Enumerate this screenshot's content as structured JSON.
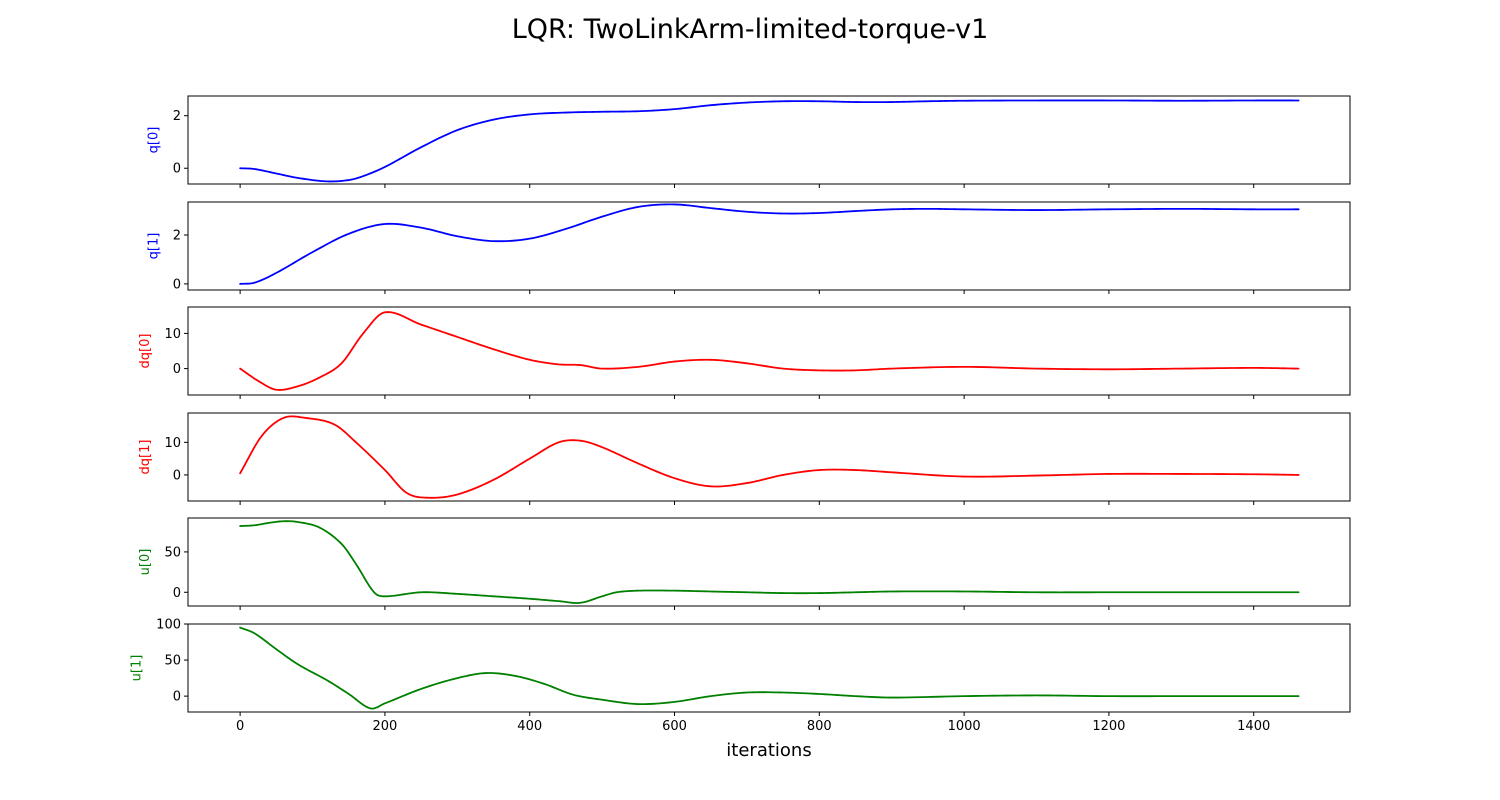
{
  "figure": {
    "title": "LQR: TwoLinkArm-limited-torque-v1",
    "xlabel": "iterations"
  },
  "chart_data": [
    {
      "type": "line",
      "ylabel": "q[0]",
      "color": "#0000ff",
      "xlim": [
        -72,
        1533
      ],
      "ylim": [
        -0.6,
        2.75
      ],
      "yticks": [
        0,
        2
      ],
      "xticks": [
        0,
        200,
        400,
        600,
        800,
        1000,
        1200,
        1400
      ],
      "show_xtick_labels": false,
      "x": [
        0,
        20,
        50,
        80,
        120,
        150,
        170,
        200,
        250,
        300,
        350,
        400,
        450,
        500,
        550,
        600,
        650,
        700,
        750,
        800,
        850,
        900,
        950,
        1000,
        1100,
        1200,
        1300,
        1400,
        1462
      ],
      "y": [
        0.0,
        -0.03,
        -0.2,
        -0.37,
        -0.5,
        -0.45,
        -0.3,
        0.05,
        0.8,
        1.45,
        1.85,
        2.05,
        2.12,
        2.15,
        2.17,
        2.25,
        2.4,
        2.5,
        2.55,
        2.55,
        2.52,
        2.52,
        2.55,
        2.57,
        2.58,
        2.58,
        2.57,
        2.58,
        2.58
      ]
    },
    {
      "type": "line",
      "ylabel": "q[1]",
      "color": "#0000ff",
      "xlim": [
        -72,
        1533
      ],
      "ylim": [
        -0.25,
        3.35
      ],
      "yticks": [
        0,
        2
      ],
      "xticks": [
        0,
        200,
        400,
        600,
        800,
        1000,
        1200,
        1400
      ],
      "show_xtick_labels": false,
      "x": [
        0,
        20,
        50,
        100,
        150,
        200,
        250,
        300,
        350,
        400,
        450,
        500,
        550,
        600,
        650,
        700,
        750,
        800,
        850,
        900,
        950,
        1000,
        1100,
        1200,
        1300,
        1400,
        1462
      ],
      "y": [
        0.0,
        0.05,
        0.45,
        1.3,
        2.05,
        2.45,
        2.3,
        1.95,
        1.75,
        1.85,
        2.25,
        2.75,
        3.15,
        3.25,
        3.1,
        2.95,
        2.88,
        2.9,
        2.98,
        3.05,
        3.07,
        3.05,
        3.02,
        3.05,
        3.07,
        3.05,
        3.05
      ]
    },
    {
      "type": "line",
      "ylabel": "dq[0]",
      "color": "#ff0000",
      "xlim": [
        -72,
        1533
      ],
      "ylim": [
        -7.5,
        17.5
      ],
      "yticks": [
        0,
        10
      ],
      "xticks": [
        0,
        200,
        400,
        600,
        800,
        1000,
        1200,
        1400
      ],
      "show_xtick_labels": false,
      "x": [
        0,
        25,
        50,
        80,
        110,
        140,
        170,
        200,
        250,
        300,
        350,
        400,
        440,
        470,
        500,
        550,
        600,
        650,
        700,
        750,
        800,
        850,
        900,
        1000,
        1100,
        1200,
        1300,
        1400,
        1462
      ],
      "y": [
        0.0,
        -3.5,
        -6.0,
        -5.0,
        -2.5,
        1.5,
        10.0,
        16.0,
        12.5,
        9.0,
        5.5,
        2.5,
        1.2,
        1.0,
        0.0,
        0.5,
        2.0,
        2.5,
        1.5,
        0.0,
        -0.5,
        -0.5,
        0.0,
        0.5,
        0.0,
        -0.2,
        0.0,
        0.2,
        0.0
      ]
    },
    {
      "type": "line",
      "ylabel": "dq[1]",
      "color": "#ff0000",
      "xlim": [
        -72,
        1533
      ],
      "ylim": [
        -8.0,
        19.0
      ],
      "yticks": [
        0,
        10
      ],
      "xticks": [
        0,
        200,
        400,
        600,
        800,
        1000,
        1200,
        1400
      ],
      "show_xtick_labels": false,
      "x": [
        0,
        30,
        60,
        90,
        130,
        160,
        200,
        230,
        260,
        300,
        350,
        400,
        440,
        470,
        500,
        550,
        600,
        650,
        700,
        750,
        800,
        850,
        900,
        1000,
        1100,
        1200,
        1300,
        1400,
        1462
      ],
      "y": [
        0.5,
        12.0,
        17.5,
        17.5,
        15.5,
        10.0,
        1.5,
        -5.5,
        -7.0,
        -6.0,
        -1.5,
        5.0,
        10.0,
        10.5,
        8.5,
        3.5,
        -1.0,
        -3.5,
        -2.5,
        0.0,
        1.5,
        1.5,
        0.8,
        -0.5,
        -0.2,
        0.3,
        0.3,
        0.2,
        0.0
      ]
    },
    {
      "type": "line",
      "ylabel": "u[0]",
      "color": "#008000",
      "xlim": [
        -72,
        1533
      ],
      "ylim": [
        -17.0,
        92.0
      ],
      "yticks": [
        0,
        50
      ],
      "xticks": [
        0,
        200,
        400,
        600,
        800,
        1000,
        1200,
        1400
      ],
      "show_xtick_labels": false,
      "x": [
        0,
        20,
        40,
        60,
        80,
        110,
        140,
        160,
        185,
        200,
        250,
        300,
        350,
        400,
        440,
        470,
        500,
        520,
        550,
        600,
        650,
        700,
        750,
        800,
        850,
        900,
        1000,
        1100,
        1200,
        1300,
        1400,
        1462
      ],
      "y": [
        82,
        83,
        86,
        88,
        87,
        80,
        60,
        35,
        0,
        -5,
        0,
        -2,
        -5,
        -8,
        -11,
        -13,
        -5,
        0,
        2,
        2,
        1,
        0,
        -1,
        -1,
        0,
        1,
        1,
        0,
        0,
        0,
        0,
        0
      ]
    },
    {
      "type": "line",
      "ylabel": "u[1]",
      "color": "#008000",
      "xlim": [
        -72,
        1533
      ],
      "ylim": [
        -22.0,
        100.0
      ],
      "yticks": [
        0,
        50,
        100
      ],
      "xticks": [
        0,
        200,
        400,
        600,
        800,
        1000,
        1200,
        1400
      ],
      "show_xtick_labels": true,
      "xtick_labels": [
        "0",
        "200",
        "400",
        "600",
        "800",
        "1000",
        "1200",
        "1400"
      ],
      "x": [
        0,
        20,
        50,
        80,
        120,
        150,
        180,
        200,
        250,
        300,
        340,
        380,
        420,
        460,
        500,
        550,
        600,
        650,
        700,
        750,
        800,
        850,
        900,
        1000,
        1100,
        1200,
        1300,
        1400,
        1462
      ],
      "y": [
        95,
        87,
        65,
        44,
        22,
        3,
        -17,
        -10,
        10,
        25,
        32,
        28,
        17,
        2,
        -5,
        -11,
        -8,
        0,
        5,
        5,
        3,
        0,
        -2,
        0,
        1,
        0,
        0,
        0,
        0
      ]
    }
  ]
}
